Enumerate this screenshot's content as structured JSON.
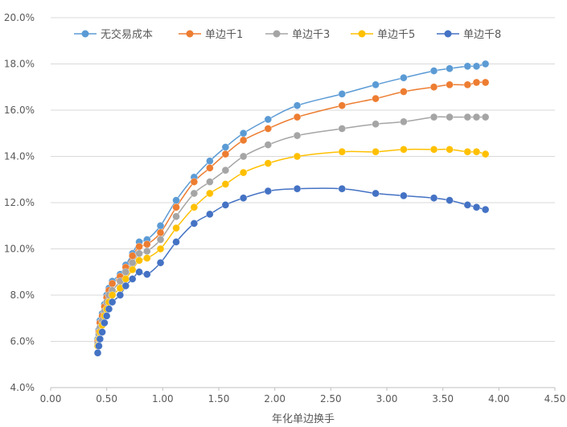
{
  "chart_data": {
    "type": "scatter",
    "title": "",
    "xlabel": "年化单边换手",
    "ylabel": "",
    "xlim": [
      0,
      4.5
    ],
    "ylim": [
      0.04,
      0.2
    ],
    "x_ticks": [
      "0.00",
      "0.50",
      "1.00",
      "1.50",
      "2.00",
      "2.50",
      "3.00",
      "3.50",
      "4.00",
      "4.50"
    ],
    "y_ticks": [
      "4.0%",
      "6.0%",
      "8.0%",
      "10.0%",
      "12.0%",
      "14.0%",
      "16.0%",
      "18.0%",
      "20.0%"
    ],
    "grid": "horizontal",
    "legend_position": "top",
    "line_style": "smooth-with-markers",
    "x": [
      0.42,
      0.43,
      0.44,
      0.46,
      0.48,
      0.5,
      0.52,
      0.55,
      0.62,
      0.67,
      0.73,
      0.79,
      0.86,
      0.98,
      1.12,
      1.28,
      1.42,
      1.56,
      1.72,
      1.94,
      2.2,
      2.6,
      2.9,
      3.15,
      3.42,
      3.56,
      3.72,
      3.8,
      3.88
    ],
    "series": [
      {
        "name": "无交易成本",
        "color": "#5B9BD5",
        "values": [
          0.061,
          0.065,
          0.069,
          0.072,
          0.076,
          0.08,
          0.083,
          0.086,
          0.089,
          0.093,
          0.098,
          0.103,
          0.104,
          0.11,
          0.121,
          0.131,
          0.138,
          0.144,
          0.15,
          0.156,
          0.162,
          0.167,
          0.171,
          0.174,
          0.177,
          0.178,
          0.179,
          0.179,
          0.18
        ]
      },
      {
        "name": "单边千1",
        "color": "#ED7D31",
        "values": [
          0.06,
          0.064,
          0.068,
          0.071,
          0.075,
          0.079,
          0.082,
          0.085,
          0.088,
          0.092,
          0.097,
          0.101,
          0.102,
          0.107,
          0.118,
          0.129,
          0.135,
          0.141,
          0.147,
          0.152,
          0.157,
          0.162,
          0.165,
          0.168,
          0.17,
          0.171,
          0.171,
          0.172,
          0.172
        ]
      },
      {
        "name": "单边千3",
        "color": "#A5A5A5",
        "values": [
          0.059,
          0.063,
          0.066,
          0.069,
          0.073,
          0.077,
          0.08,
          0.082,
          0.086,
          0.09,
          0.094,
          0.098,
          0.099,
          0.104,
          0.114,
          0.124,
          0.129,
          0.134,
          0.14,
          0.145,
          0.149,
          0.152,
          0.154,
          0.155,
          0.157,
          0.157,
          0.157,
          0.157,
          0.157
        ]
      },
      {
        "name": "单边千5",
        "color": "#FFC000",
        "values": [
          0.058,
          0.061,
          0.064,
          0.067,
          0.071,
          0.074,
          0.077,
          0.08,
          0.083,
          0.087,
          0.091,
          0.095,
          0.096,
          0.1,
          0.109,
          0.118,
          0.124,
          0.128,
          0.133,
          0.137,
          0.14,
          0.142,
          0.142,
          0.143,
          0.143,
          0.143,
          0.142,
          0.142,
          0.141
        ]
      },
      {
        "name": "单边千8",
        "color": "#4472C4",
        "values": [
          0.055,
          0.058,
          0.061,
          0.064,
          0.068,
          0.071,
          0.074,
          0.077,
          0.08,
          0.084,
          0.087,
          0.09,
          0.089,
          0.094,
          0.103,
          0.111,
          0.115,
          0.119,
          0.122,
          0.125,
          0.126,
          0.126,
          0.124,
          0.123,
          0.122,
          0.121,
          0.119,
          0.118,
          0.117
        ]
      }
    ]
  }
}
